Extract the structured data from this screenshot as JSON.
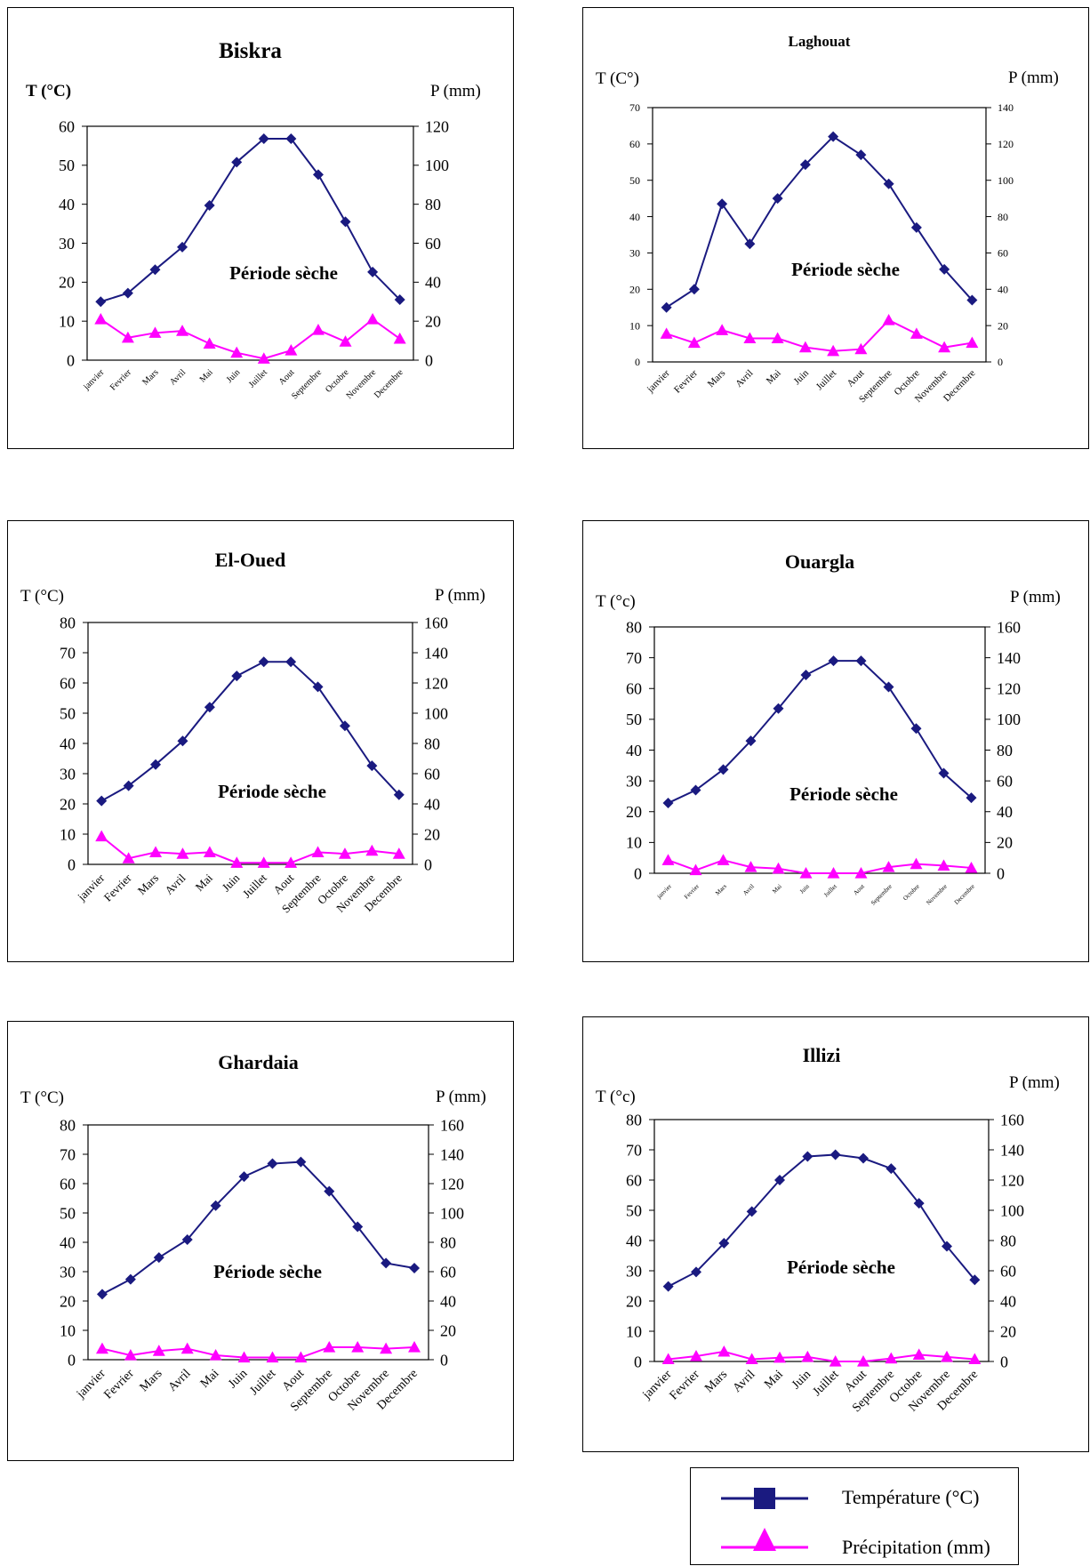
{
  "chart_data": [
    {
      "type": "line",
      "title": "Biskra",
      "ylabel": "T (°C)",
      "y2label": "P (mm)",
      "categories": [
        "janvier",
        "Fevrier",
        "Mars",
        "Avril",
        "Mai",
        "Juin",
        "Juillet",
        "Aout",
        "Septembre",
        "Octobre",
        "Novembre",
        "Decembre"
      ],
      "ylim": [
        0,
        60
      ],
      "y2lim": [
        0,
        120
      ],
      "yticks": [
        0,
        10,
        20,
        30,
        40,
        50,
        60
      ],
      "y2ticks": [
        0,
        20,
        40,
        60,
        80,
        100,
        120
      ],
      "annotation": "Période sèche",
      "series": [
        {
          "name": "Température (°C)",
          "axis": "left",
          "values": [
            15,
            17.2,
            23.2,
            29,
            39.7,
            50.8,
            56.8,
            56.8,
            47.6,
            35.5,
            22.6,
            15.5
          ]
        },
        {
          "name": "Précipitation (mm)",
          "axis": "right",
          "values": [
            21,
            11.5,
            14,
            15,
            8.5,
            3.8,
            0.8,
            5,
            15.5,
            9.5,
            21,
            11
          ]
        }
      ]
    },
    {
      "type": "line",
      "title": "Laghouat",
      "ylabel": "T (C°)",
      "y2label": "P (mm)",
      "categories": [
        "janvier",
        "Fevrier",
        "Mars",
        "Avril",
        "Mai",
        "Juin",
        "Juillet",
        "Aout",
        "Septembre",
        "Octobre",
        "Novembre",
        "Decembre"
      ],
      "ylim": [
        0,
        70
      ],
      "y2lim": [
        0,
        140
      ],
      "yticks": [
        0,
        10,
        20,
        30,
        40,
        50,
        60,
        70
      ],
      "y2ticks": [
        0,
        20,
        40,
        60,
        80,
        100,
        120,
        140
      ],
      "annotation": "Période sèche",
      "series": [
        {
          "name": "Température (°C)",
          "axis": "left",
          "values": [
            15,
            20,
            43.5,
            32.5,
            45,
            54.3,
            62,
            57,
            49,
            37,
            25.5,
            17
          ]
        },
        {
          "name": "Précipitation (mm)",
          "axis": "right",
          "values": [
            15.5,
            10.5,
            17.5,
            13,
            13,
            8,
            6,
            7,
            23,
            15.5,
            8,
            10.5
          ]
        }
      ]
    },
    {
      "type": "line",
      "title": "El-Oued",
      "ylabel": "T (°C)",
      "y2label": "P (mm)",
      "categories": [
        "janvier",
        "Fevrier",
        "Mars",
        "Avril",
        "Mai",
        "Juin",
        "Juillet",
        "Aout",
        "Septembre",
        "Octobre",
        "Novembre",
        "Decembre"
      ],
      "ylim": [
        0,
        80
      ],
      "y2lim": [
        0,
        160
      ],
      "yticks": [
        0,
        10,
        20,
        30,
        40,
        50,
        60,
        70,
        80
      ],
      "y2ticks": [
        0,
        20,
        40,
        60,
        80,
        100,
        120,
        140,
        160
      ],
      "annotation": "Période sèche",
      "series": [
        {
          "name": "Température (°C)",
          "axis": "left",
          "values": [
            21,
            26,
            33,
            40.8,
            52,
            62.3,
            67,
            67,
            58.7,
            45.8,
            32.6,
            23
          ]
        },
        {
          "name": "Précipitation (mm)",
          "axis": "right",
          "values": [
            18.5,
            4,
            8,
            7,
            8,
            1,
            1,
            1,
            8,
            7,
            9,
            7
          ]
        }
      ]
    },
    {
      "type": "line",
      "title": "Ouargla",
      "ylabel": "T (°c)",
      "y2label": "P (mm)",
      "categories": [
        "janvier",
        "Fevrier",
        "Mars",
        "Avril",
        "Mai",
        "Juin",
        "Juillet",
        "Aout",
        "Septembre",
        "Octobre",
        "Novembre",
        "Decembre"
      ],
      "ylim": [
        0,
        80
      ],
      "y2lim": [
        0,
        160
      ],
      "yticks": [
        0,
        10,
        20,
        30,
        40,
        50,
        60,
        70,
        80
      ],
      "y2ticks": [
        0,
        20,
        40,
        60,
        80,
        100,
        120,
        140,
        160
      ],
      "annotation": "Période sèche",
      "series": [
        {
          "name": "Température (°C)",
          "axis": "left",
          "values": [
            22.8,
            27,
            33.7,
            43,
            53.5,
            64.4,
            69,
            69,
            60.5,
            47,
            32.5,
            24.5
          ]
        },
        {
          "name": "Précipitation (mm)",
          "axis": "right",
          "values": [
            8.5,
            2,
            8.5,
            4,
            3,
            0,
            0,
            0,
            4,
            6,
            5,
            3.5
          ]
        }
      ]
    },
    {
      "type": "line",
      "title": "Ghardaia",
      "ylabel": "T (°C)",
      "y2label": "P (mm)",
      "categories": [
        "janvier",
        "Fevrier",
        "Mars",
        "Avril",
        "Mai",
        "Juin",
        "Juillet",
        "Aout",
        "Septembre",
        "Octobre",
        "Novembre",
        "Decembre"
      ],
      "ylim": [
        0,
        80
      ],
      "y2lim": [
        0,
        160
      ],
      "yticks": [
        0,
        10,
        20,
        30,
        40,
        50,
        60,
        70,
        80
      ],
      "y2ticks": [
        0,
        20,
        40,
        60,
        80,
        100,
        120,
        140,
        160
      ],
      "annotation": "Période sèche",
      "series": [
        {
          "name": "Température (°C)",
          "axis": "left",
          "values": [
            22.3,
            27.4,
            34.8,
            40.9,
            52.5,
            62.4,
            66.8,
            67.4,
            57.4,
            45.3,
            32.9,
            31.2
          ]
        },
        {
          "name": "Précipitation (mm)",
          "axis": "right",
          "values": [
            7.5,
            3,
            6,
            7.5,
            3,
            1.5,
            1.5,
            1.5,
            8.5,
            8.5,
            7.5,
            8.5
          ]
        }
      ]
    },
    {
      "type": "line",
      "title": "Illizi",
      "ylabel": "T (°c)",
      "y2label": "P (mm)",
      "categories": [
        "janvier",
        "Fevrier",
        "Mars",
        "Avril",
        "Mai",
        "Juin",
        "Juillet",
        "Aout",
        "Septembre",
        "Octobre",
        "Novembre",
        "Decembre"
      ],
      "ylim": [
        0,
        80
      ],
      "y2lim": [
        0,
        160
      ],
      "yticks": [
        0,
        10,
        20,
        30,
        40,
        50,
        60,
        70,
        80
      ],
      "y2ticks": [
        0,
        20,
        40,
        60,
        80,
        100,
        120,
        140,
        160
      ],
      "annotation": "Période sèche",
      "series": [
        {
          "name": "Température (°C)",
          "axis": "left",
          "values": [
            24.8,
            29.6,
            39.1,
            49.6,
            60,
            67.8,
            68.4,
            67.2,
            63.8,
            52.3,
            38.1,
            27
          ]
        },
        {
          "name": "Précipitation (mm)",
          "axis": "right",
          "values": [
            1.5,
            3.5,
            6.5,
            1.5,
            2.5,
            3,
            0,
            0,
            2,
            4.5,
            3,
            1.5
          ]
        }
      ]
    }
  ],
  "legend": {
    "items": [
      {
        "label": "Température (°C)",
        "color": "#1a1a80",
        "marker": "square"
      },
      {
        "label": "Précipitation (mm)",
        "color": "#ff00ff",
        "marker": "triangle"
      }
    ]
  }
}
